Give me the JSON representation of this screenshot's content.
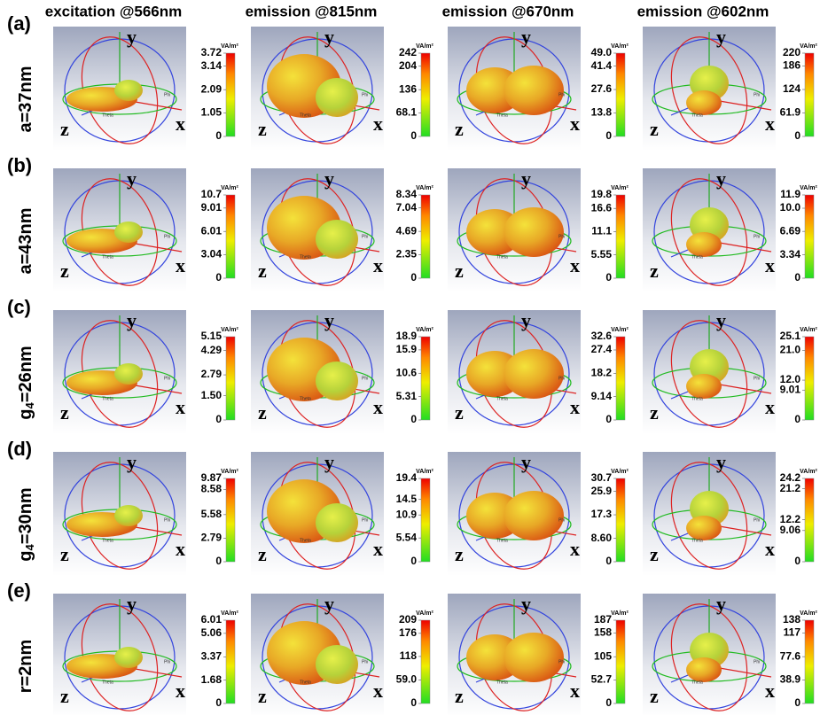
{
  "columns": [
    "excitation @566nm",
    "emission @815nm",
    "emission @670nm",
    "emission @602nm"
  ],
  "unit": "VA/m²",
  "axes": {
    "y": "y",
    "x": "x",
    "z": "z",
    "phi": "Phi",
    "theta": "Theta"
  },
  "rows": [
    {
      "letter": "(a)",
      "label": {
        "main": "a=37nm"
      },
      "colorbars": [
        [
          3.72,
          3.14,
          2.09,
          1.05,
          0
        ],
        [
          242,
          204,
          136,
          68.1,
          0
        ],
        [
          {
            "value": 49.0,
            "label": "49.0"
          },
          41.4,
          27.6,
          13.8,
          0
        ],
        [
          220,
          186,
          124,
          61.9,
          0
        ]
      ]
    },
    {
      "letter": "(b)",
      "label": {
        "main": "a=43nm"
      },
      "colorbars": [
        [
          10.7,
          9.01,
          6.01,
          3.04,
          0
        ],
        [
          8.34,
          7.04,
          4.69,
          2.35,
          0
        ],
        [
          19.8,
          16.6,
          11.1,
          5.55,
          0
        ],
        [
          11.9,
          {
            "value": 10.0,
            "label": "10.0"
          },
          6.69,
          3.34,
          0
        ]
      ]
    },
    {
      "letter": "(c)",
      "label": {
        "main": "g",
        "sub": "4",
        "tail": "=26nm"
      },
      "colorbars": [
        [
          5.15,
          4.29,
          2.79,
          {
            "value": 1.5,
            "label": "1.50"
          },
          0
        ],
        [
          18.9,
          15.9,
          10.6,
          5.31,
          0
        ],
        [
          32.6,
          27.4,
          18.2,
          9.14,
          0
        ],
        [
          25.1,
          {
            "value": 21.0,
            "label": "21.0"
          },
          {
            "value": 12.0,
            "label": "12.0"
          },
          9.01,
          0
        ]
      ]
    },
    {
      "letter": "(d)",
      "label": {
        "main": "g",
        "sub": "4",
        "tail": "=30nm"
      },
      "colorbars": [
        [
          9.87,
          8.58,
          5.58,
          2.79,
          0
        ],
        [
          19.4,
          14.5,
          10.9,
          5.54,
          0
        ],
        [
          30.7,
          25.9,
          17.3,
          {
            "value": 8.6,
            "label": "8.60"
          },
          0
        ],
        [
          24.2,
          21.2,
          12.2,
          9.06,
          0
        ]
      ]
    },
    {
      "letter": "(e)",
      "label": {
        "main": "r=2nm"
      },
      "colorbars": [
        [
          6.01,
          5.06,
          3.37,
          1.68,
          0
        ],
        [
          209,
          176,
          118,
          {
            "value": 59.0,
            "label": "59.0"
          },
          0
        ],
        [
          187,
          158,
          105,
          52.7,
          0
        ],
        [
          138,
          117,
          77.6,
          38.9,
          0
        ]
      ]
    }
  ]
}
